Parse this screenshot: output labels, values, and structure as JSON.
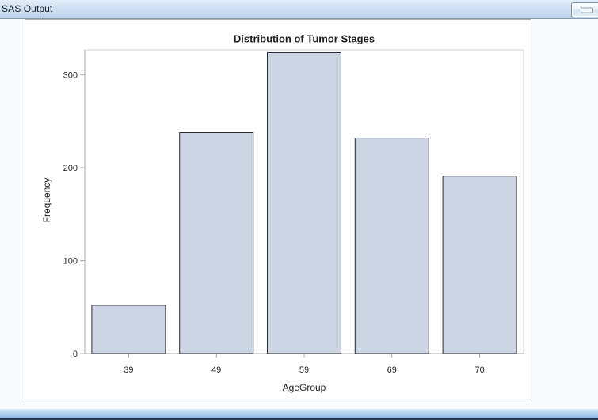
{
  "window": {
    "title": "SAS Output",
    "minimize_label": "minimize"
  },
  "chart_data": {
    "type": "bar",
    "title": "Distribution of Tumor Stages",
    "xlabel": "AgeGroup",
    "ylabel": "Frequency",
    "categories": [
      "39",
      "49",
      "59",
      "69",
      "70"
    ],
    "values": [
      52,
      238,
      324,
      232,
      191
    ],
    "y_ticks": [
      0,
      100,
      200,
      300
    ],
    "y_tick_labels": [
      "0",
      "100",
      "200",
      "300"
    ],
    "ylim": [
      0,
      327
    ],
    "grid": false,
    "legend": "none",
    "bar_fill": "#ccd5e3",
    "bar_border": "#2a2e33",
    "axis_color": "#a7abb3",
    "frame_color": "#cdd0d6"
  },
  "colors": {
    "titlebar_accent": "#bcd2e9",
    "viewer_background": "#f7f9fd",
    "panel_border": "#a9adb5",
    "statusbar_blue": "#90bce7",
    "statusbar_navy": "#16304d"
  }
}
